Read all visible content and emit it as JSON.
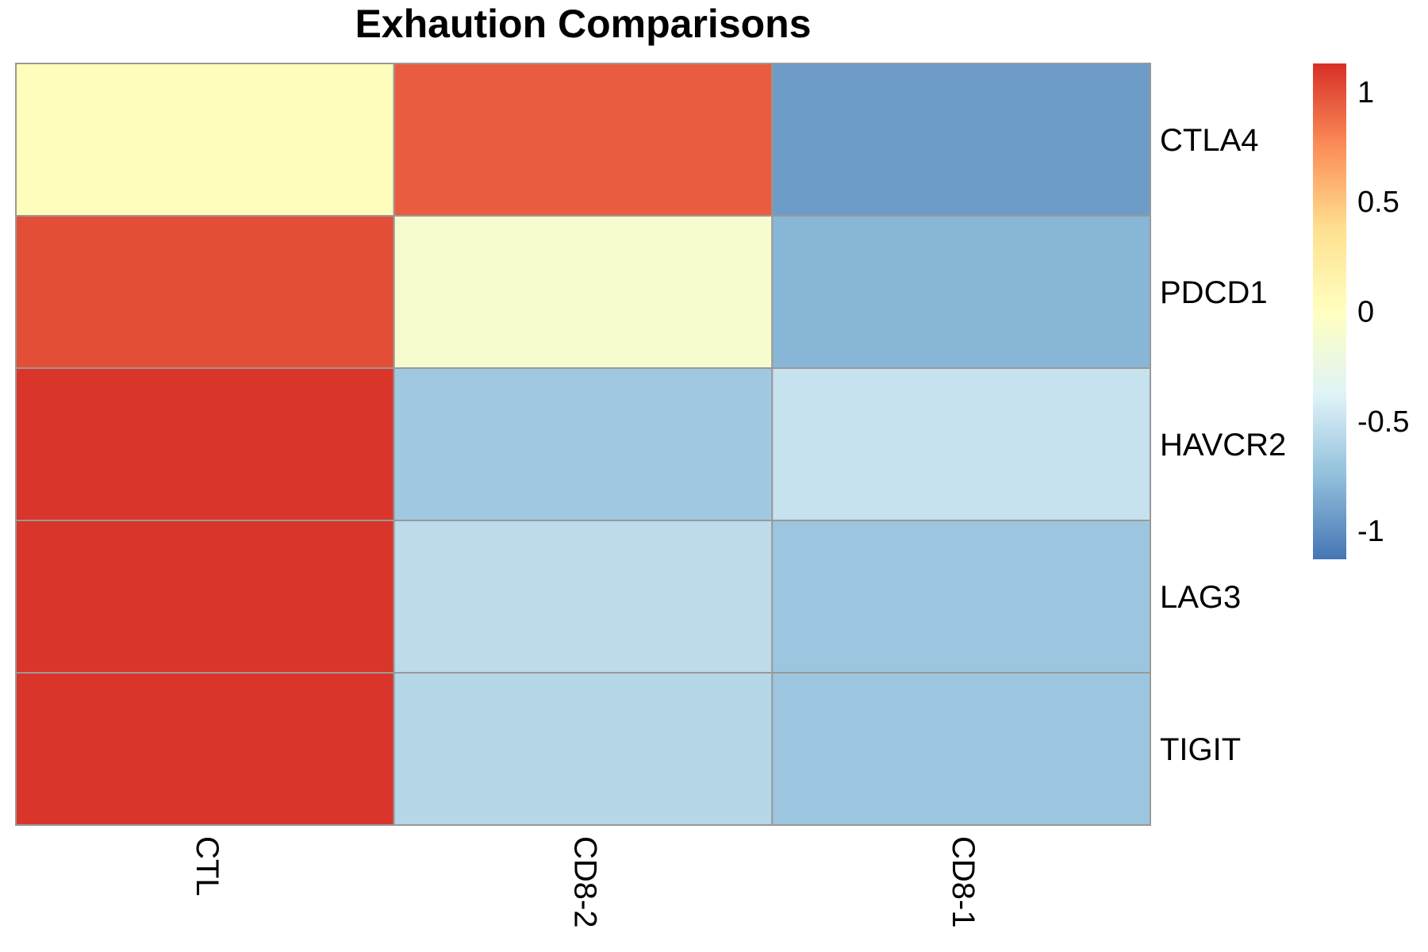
{
  "chart_data": {
    "type": "heatmap",
    "title": "Exhaution Comparisons",
    "columns": [
      "CTL",
      "CD8-2",
      "CD8-1"
    ],
    "rows": [
      "CTLA4",
      "PDCD1",
      "HAVCR2",
      "LAG3",
      "TIGIT"
    ],
    "values": [
      [
        0.03,
        0.95,
        -0.93
      ],
      [
        1.01,
        -0.1,
        -0.8
      ],
      [
        1.11,
        -0.68,
        -0.5
      ],
      [
        1.11,
        -0.55,
        -0.7
      ],
      [
        1.11,
        -0.58,
        -0.7
      ]
    ],
    "color_scale": {
      "min": -1.13,
      "max": 1.13,
      "colors": [
        "#4575b4",
        "#91bfdb",
        "#e0f3f8",
        "#ffffbf",
        "#fee090",
        "#fc8d59",
        "#d73027"
      ]
    },
    "legend": {
      "position": "right",
      "ticks": [
        1,
        0.5,
        0,
        -0.5,
        -1
      ],
      "tick_labels": [
        "1",
        "0.5",
        "0",
        "-0.5",
        "-1"
      ]
    },
    "cell_border_color": "#999999"
  }
}
